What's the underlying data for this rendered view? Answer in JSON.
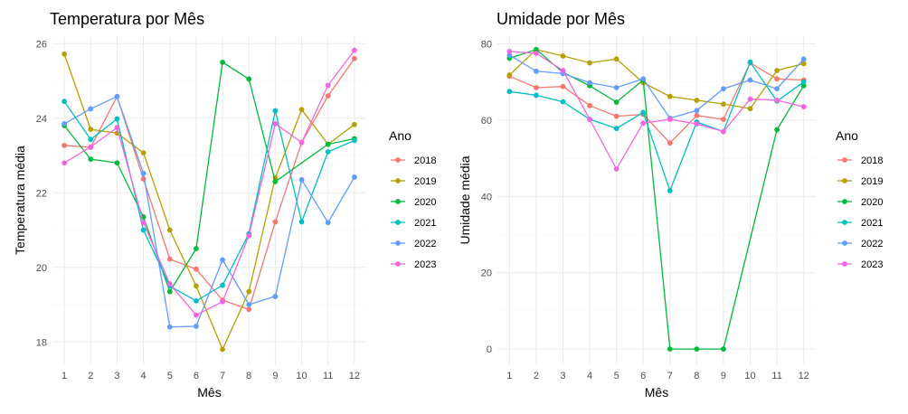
{
  "chart_data": [
    {
      "type": "line",
      "title": "Temperatura por Mês",
      "xlabel": "Mês",
      "ylabel": "Temperatura média",
      "x": [
        1,
        2,
        3,
        4,
        5,
        6,
        7,
        8,
        9,
        10,
        11,
        12
      ],
      "xlim": [
        0.55,
        12.45
      ],
      "ylim": [
        17.4,
        26.2
      ],
      "yticks": [
        18,
        20,
        22,
        24,
        26
      ],
      "grid": true,
      "legend_title": "Ano",
      "legend_position": "right",
      "series": [
        {
          "name": "2018",
          "color": "#F8766D",
          "values": [
            23.27,
            23.22,
            24.58,
            22.37,
            20.22,
            19.95,
            19.12,
            18.87,
            21.22,
            23.35,
            24.6,
            25.6
          ]
        },
        {
          "name": "2019",
          "color": "#B79F00",
          "values": [
            25.72,
            23.7,
            23.6,
            23.07,
            21.0,
            19.5,
            17.8,
            19.35,
            22.4,
            24.23,
            23.3,
            23.83
          ]
        },
        {
          "name": "2020",
          "color": "#00BA38",
          "values": [
            23.8,
            22.9,
            22.8,
            21.35,
            19.35,
            20.5,
            25.5,
            25.05,
            22.3,
            null,
            23.3,
            23.45
          ]
        },
        {
          "name": "2021",
          "color": "#00BFC4",
          "values": [
            24.45,
            23.43,
            23.98,
            21.0,
            19.5,
            19.1,
            19.52,
            20.9,
            24.2,
            21.22,
            23.1,
            23.4
          ]
        },
        {
          "name": "2022",
          "color": "#619CFF",
          "values": [
            23.85,
            24.25,
            24.58,
            22.52,
            18.4,
            18.42,
            20.2,
            19.0,
            19.22,
            22.35,
            21.2,
            22.42
          ]
        },
        {
          "name": "2023",
          "color": "#F564E3",
          "values": [
            22.8,
            23.23,
            23.75,
            21.2,
            19.55,
            18.72,
            19.08,
            20.85,
            23.85,
            23.35,
            24.88,
            25.82
          ]
        }
      ]
    },
    {
      "type": "line",
      "title": "Umidade por Mês",
      "xlabel": "Mês",
      "ylabel": "Umidade média",
      "x": [
        1,
        2,
        3,
        4,
        5,
        6,
        7,
        8,
        9,
        10,
        11,
        12
      ],
      "xlim": [
        0.55,
        12.45
      ],
      "ylim": [
        -4,
        82
      ],
      "yticks": [
        0,
        20,
        40,
        60,
        80
      ],
      "grid": true,
      "legend_title": "Ano",
      "legend_position": "right",
      "series": [
        {
          "name": "2018",
          "color": "#F8766D",
          "values": [
            71.5,
            68.5,
            68.8,
            63.8,
            61.0,
            61.5,
            54.0,
            61.2,
            60.2,
            75.0,
            70.8,
            70.5
          ]
        },
        {
          "name": "2019",
          "color": "#B79F00",
          "values": [
            71.8,
            78.5,
            76.8,
            75.0,
            76.0,
            69.8,
            66.2,
            65.2,
            64.2,
            63.0,
            73.0,
            74.8
          ]
        },
        {
          "name": "2020",
          "color": "#00BA38",
          "values": [
            76.2,
            78.5,
            72.5,
            69.0,
            64.7,
            70.5,
            0.0,
            0.0,
            0.0,
            null,
            57.5,
            69.0
          ]
        },
        {
          "name": "2021",
          "color": "#00BFC4",
          "values": [
            67.5,
            66.5,
            64.8,
            60.2,
            57.8,
            62.0,
            41.5,
            59.5,
            57.0,
            75.2,
            65.0,
            70.0
          ]
        },
        {
          "name": "2022",
          "color": "#619CFF",
          "values": [
            77.0,
            72.8,
            72.2,
            69.8,
            68.5,
            70.8,
            60.5,
            62.5,
            68.2,
            70.5,
            68.2,
            76.0
          ]
        },
        {
          "name": "2023",
          "color": "#F564E3",
          "values": [
            78.0,
            77.5,
            73.0,
            60.2,
            47.2,
            59.2,
            60.2,
            59.0,
            57.0,
            65.5,
            65.2,
            63.5
          ]
        }
      ]
    }
  ]
}
